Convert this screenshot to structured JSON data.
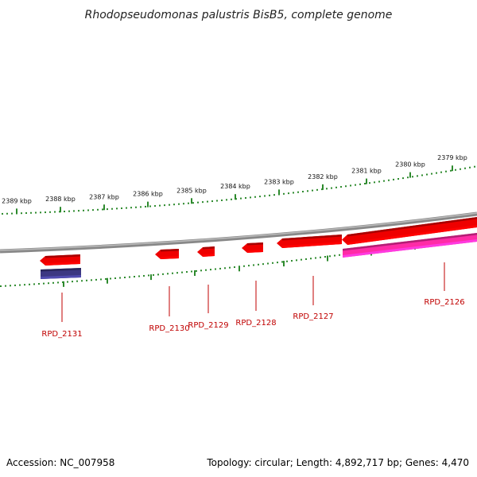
{
  "title": "Rhodopseudomonas palustris BisB5, complete genome",
  "accession": "Accession: NC_007958",
  "summary": "Topology: circular; Length: 4,892,717 bp; Genes: 4,470",
  "colors": {
    "backbone": "#888888",
    "ruler": "#2d8a2d",
    "gene_forward": "#ee0000",
    "gene_reverse": "#ff2ba6",
    "gene_other": "#3c3882",
    "label": "#c00000"
  },
  "ruler_outer": {
    "labels": [
      "2389 kbp",
      "2388 kbp",
      "2387 kbp",
      "2386 kbp",
      "2385 kbp",
      "2384 kbp",
      "2383 kbp",
      "2382 kbp",
      "2381 kbp",
      "2380 kbp",
      "2379 kbp"
    ]
  },
  "genes": [
    {
      "name": "RPD_2131",
      "color": "#ee0000",
      "strand": "minus"
    },
    {
      "name": "",
      "color": "#3c3882",
      "strand": "none"
    },
    {
      "name": "RPD_2130",
      "color": "#ee0000",
      "strand": "minus"
    },
    {
      "name": "RPD_2129",
      "color": "#ee0000",
      "strand": "minus"
    },
    {
      "name": "RPD_2128",
      "color": "#ee0000",
      "strand": "minus"
    },
    {
      "name": "RPD_2127",
      "color": "#ee0000",
      "strand": "minus"
    },
    {
      "name": "RPD_2126",
      "color": "#ee0000",
      "strand": "minus"
    },
    {
      "name": "",
      "color": "#ff2ba6",
      "strand": "none"
    }
  ]
}
